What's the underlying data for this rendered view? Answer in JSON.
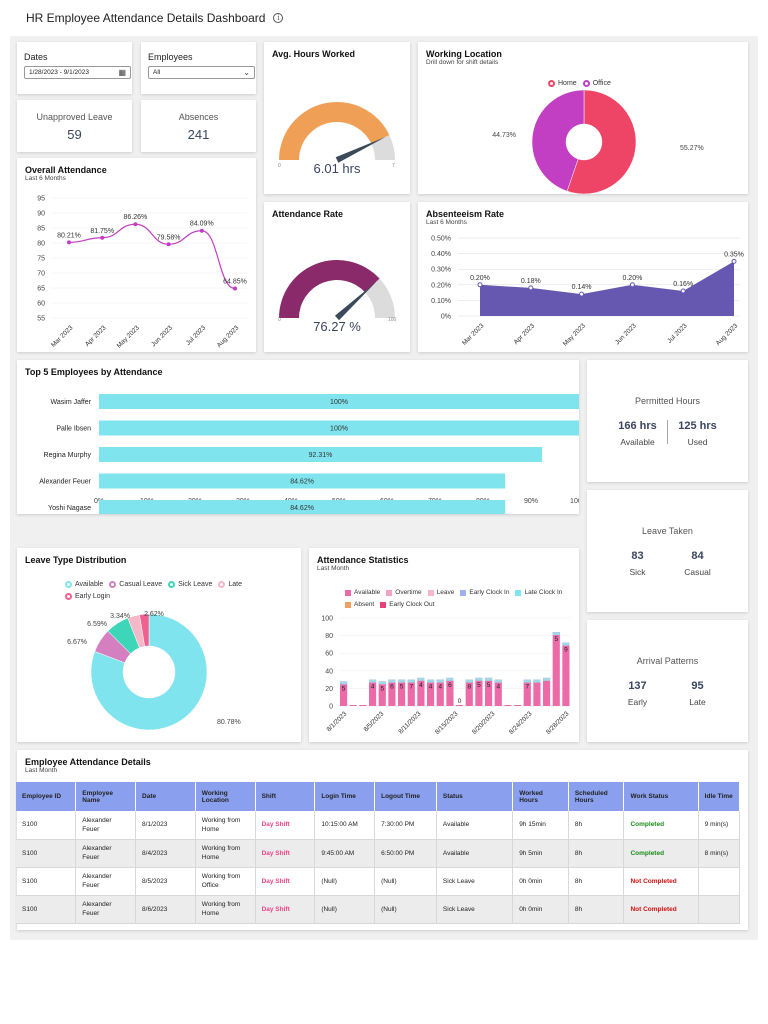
{
  "page": {
    "title": "HR Employee Attendance Details Dashboard"
  },
  "filters": {
    "dates": {
      "label": "Dates",
      "value": "1/28/2023 - 9/1/2023"
    },
    "employees": {
      "label": "Employees",
      "value": "All"
    }
  },
  "kpis": {
    "unapproved_leave": {
      "label": "Unapproved Leave",
      "value": "59"
    },
    "absences": {
      "label": "Absences",
      "value": "241"
    }
  },
  "avg_hours": {
    "title": "Avg. Hours Worked",
    "value": "6.01 hrs",
    "min": "0",
    "max": "7",
    "gauge_value": 6.01,
    "gauge_max": 7
  },
  "attendance_rate": {
    "title": "Attendance Rate",
    "value": "76.27 %",
    "min": "0",
    "max": "100",
    "gauge_value": 76.27,
    "gauge_max": 100
  },
  "working_location": {
    "title": "Working Location",
    "subtitle": "Drill down for shift details",
    "legend": [
      {
        "name": "Home",
        "color": "#ee4466"
      },
      {
        "name": "Office",
        "color": "#c23ec2"
      }
    ],
    "slices": [
      {
        "name": "Home",
        "value": 55.27,
        "label": "55.27%"
      },
      {
        "name": "Office",
        "value": 44.73,
        "label": "44.73%"
      }
    ]
  },
  "overall_attendance": {
    "title": "Overall Attendance",
    "subtitle": "Last 6 Months",
    "yticks": [
      "95",
      "90",
      "85",
      "80",
      "75",
      "70",
      "65",
      "60",
      "55"
    ],
    "ylim": [
      55,
      95
    ],
    "categories": [
      "Mar 2023",
      "Apr 2023",
      "May 2023",
      "Jun 2023",
      "Jul 2023",
      "Aug 2023"
    ],
    "values": [
      80.21,
      81.75,
      86.26,
      79.58,
      84.09,
      64.85
    ],
    "labels": [
      "80.21%",
      "81.75%",
      "86.26%",
      "79.58%",
      "84.09%",
      "64.85%"
    ]
  },
  "absenteeism": {
    "title": "Absenteeism Rate",
    "subtitle": "Last 6 Months",
    "yticks": [
      "0.50%",
      "0.40%",
      "0.30%",
      "0.20%",
      "0.10%",
      "0%"
    ],
    "ylim": [
      0,
      0.5
    ],
    "categories": [
      "Mar 2023",
      "Apr 2023",
      "May 2023",
      "Jun 2023",
      "Jul 2023",
      "Aug 2023"
    ],
    "values": [
      0.2,
      0.18,
      0.14,
      0.2,
      0.16,
      0.35
    ],
    "labels": [
      "0.20%",
      "0.18%",
      "0.14%",
      "0.20%",
      "0.16%",
      "0.35%"
    ]
  },
  "top5": {
    "title": "Top 5 Employees by Attendance",
    "employees": [
      {
        "name": "Wasim Jaffer",
        "value": 100,
        "label": "100%"
      },
      {
        "name": "Palle Ibsen",
        "value": 100,
        "label": "100%"
      },
      {
        "name": "Regina Murphy",
        "value": 92.31,
        "label": "92.31%"
      },
      {
        "name": "Alexander Feuer",
        "value": 84.62,
        "label": "84.62%"
      },
      {
        "name": "Yoshi Nagase",
        "value": 84.62,
        "label": "84.62%"
      }
    ],
    "xticks": [
      "0%",
      "10%",
      "20%",
      "30%",
      "40%",
      "50%",
      "60%",
      "70%",
      "80%",
      "90%",
      "100%"
    ]
  },
  "permitted_hours": {
    "title": "Permitted Hours",
    "left_value": "166 hrs",
    "left_label": "Available",
    "right_value": "125 hrs",
    "right_label": "Used"
  },
  "leave_taken": {
    "title": "Leave Taken",
    "left_value": "83",
    "left_label": "Sick",
    "right_value": "84",
    "right_label": "Casual"
  },
  "arrival_patterns": {
    "title": "Arrival Patterns",
    "left_value": "137",
    "left_label": "Early",
    "right_value": "95",
    "right_label": "Late"
  },
  "leave_type": {
    "title": "Leave Type Distribution",
    "legend": [
      {
        "name": "Available",
        "color": "#7fe4ee"
      },
      {
        "name": "Casual Leave",
        "color": "#d47fc0"
      },
      {
        "name": "Sick Leave",
        "color": "#3dd6b8"
      },
      {
        "name": "Late",
        "color": "#f4b8c8"
      },
      {
        "name": "Early Login",
        "color": "#f06090"
      }
    ],
    "slices": [
      {
        "name": "Available",
        "value": 80.78,
        "label": "80.78%"
      },
      {
        "name": "Casual Leave",
        "value": 6.67,
        "label": "6.67%"
      },
      {
        "name": "Sick Leave",
        "value": 6.59,
        "label": "6.59%"
      },
      {
        "name": "Late",
        "value": 3.34,
        "label": "3.34%"
      },
      {
        "name": "Early Login",
        "value": 2.62,
        "label": "2.62%"
      }
    ]
  },
  "attendance_stats": {
    "title": "Attendance Statistics",
    "subtitle": "Last Month",
    "legend": [
      {
        "name": "Available",
        "color": "#ec6aa8"
      },
      {
        "name": "Overtime",
        "color": "#f4a2c4"
      },
      {
        "name": "Leave",
        "color": "#f7b6cc"
      },
      {
        "name": "Early Clock In",
        "color": "#9fb2f0"
      },
      {
        "name": "Late Clock In",
        "color": "#7fe4ee"
      },
      {
        "name": "Absent",
        "color": "#f0a060"
      },
      {
        "name": "Early Clock Out",
        "color": "#e8407a"
      }
    ],
    "yticks": [
      "100",
      "80",
      "60",
      "40",
      "20",
      "0"
    ],
    "ylim": [
      0,
      100
    ],
    "xticks": [
      "8/1/2023",
      "8/5/2023",
      "8/11/2023",
      "8/15/2023",
      "8/20/2023",
      "8/24/2023",
      "8/28/2023"
    ],
    "totals": [
      28,
      0,
      0,
      30,
      28,
      30,
      30,
      30,
      32,
      30,
      30,
      32,
      0,
      30,
      32,
      32,
      30,
      0,
      0,
      30,
      30,
      32,
      84,
      72
    ],
    "labels": [
      "5",
      "",
      "",
      "4",
      "5",
      "6",
      "5",
      "7",
      "4",
      "4",
      "4",
      "6",
      "0",
      "8",
      "5",
      "5",
      "4",
      "",
      "",
      "7",
      "",
      "",
      "5",
      "9"
    ]
  },
  "details": {
    "title": "Employee Attendance Details",
    "subtitle": "Last Month",
    "columns": [
      "Employee ID",
      "Employee Name",
      "Date",
      "Working Location",
      "Shift",
      "Login Time",
      "Logout Time",
      "Status",
      "Worked Hours",
      "Scheduled Hours",
      "Work Status",
      "Idle Time"
    ],
    "rows": [
      [
        "S100",
        "Alexander Feuer",
        "8/1/2023",
        "Working from Home",
        "Day Shift",
        "10:15:00 AM",
        "7:30:00 PM",
        "Available",
        "9h 15min",
        "8h",
        "Completed",
        "9 min(s)"
      ],
      [
        "S100",
        "Alexander Feuer",
        "8/4/2023",
        "Working from Home",
        "Day Shift",
        "9:45:00 AM",
        "6:50:00 PM",
        "Available",
        "9h 5min",
        "8h",
        "Completed",
        "8 min(s)"
      ],
      [
        "S100",
        "Alexander Feuer",
        "8/5/2023",
        "Working from Office",
        "Day Shift",
        "(Null)",
        "(Null)",
        "Sick Leave",
        "0h 0min",
        "8h",
        "Not Completed",
        ""
      ],
      [
        "S100",
        "Alexander Feuer",
        "8/6/2023",
        "Working from Home",
        "Day Shift",
        "(Null)",
        "(Null)",
        "Sick Leave",
        "0h 0min",
        "8h",
        "Not Completed",
        ""
      ]
    ]
  }
}
